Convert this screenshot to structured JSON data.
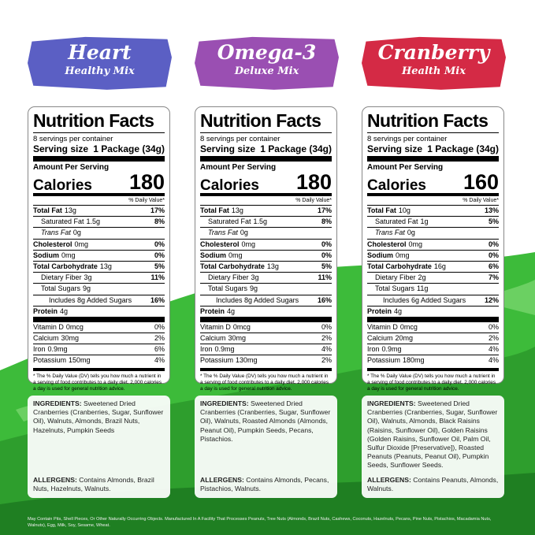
{
  "panels": [
    {
      "banner_title": "Heart",
      "banner_subtitle": "Healthy Mix",
      "banner_color": "#5b5fc4",
      "nutrition": {
        "heading": "Nutrition Facts",
        "servings": "8 servings per container",
        "serving_size_label": "Serving size",
        "serving_size": "1 Package (34g)",
        "amount_per_serving": "Amount Per Serving",
        "calories_label": "Calories",
        "calories": 180,
        "dv_header": "% Daily Value*",
        "rows": [
          {
            "label": "Total Fat",
            "amount": "13g",
            "dv": "17%"
          },
          {
            "label": "Saturated Fat",
            "amount": "1.5g",
            "dv": "8%"
          },
          {
            "label": "Trans Fat",
            "amount": "0g"
          },
          {
            "label": "Cholesterol",
            "amount": "0mg",
            "dv": "0%"
          },
          {
            "label": "Sodium",
            "amount": "0mg",
            "dv": "0%"
          },
          {
            "label": "Total Carbohydrate",
            "amount": "13g",
            "dv": "5%"
          },
          {
            "label": "Dietary Fiber",
            "amount": "3g",
            "dv": "11%"
          },
          {
            "label": "Total Sugars",
            "amount": "9g"
          },
          {
            "label": "Includes 8g Added Sugars",
            "dv": "16%"
          },
          {
            "label": "Protein",
            "amount": "4g"
          },
          {
            "label": "Vitamin D",
            "amount": "0mcg",
            "dv": "0%"
          },
          {
            "label": "Calcium",
            "amount": "30mg",
            "dv": "2%"
          },
          {
            "label": "Iron",
            "amount": "0.9mg",
            "dv": "6%"
          },
          {
            "label": "Potassium",
            "amount": "150mg",
            "dv": "4%"
          }
        ],
        "footnote": "* The % Daily Value (DV) tells you how much a nutrient in a serving of food contributes to a daily diet. 2,000 calories a day is used for general nutrition advice."
      },
      "ingredients_label": "INGREDIENTS:",
      "ingredients": "Sweetened Dried Cranberries (Cranberries, Sugar, Sunflower Oil), Walnuts, Almonds, Brazil Nuts, Hazelnuts, Pumpkin Seeds",
      "allergens_label": "ALLERGENS:",
      "allergens": "Contains Almonds, Brazil Nuts, Hazelnuts, Walnuts."
    },
    {
      "banner_title": "Omega-3",
      "banner_subtitle": "Deluxe Mix",
      "banner_color": "#9a4fb2",
      "nutrition": {
        "heading": "Nutrition Facts",
        "servings": "8 servings per container",
        "serving_size_label": "Serving size",
        "serving_size": "1 Package (34g)",
        "amount_per_serving": "Amount Per Serving",
        "calories_label": "Calories",
        "calories": 180,
        "dv_header": "% Daily Value*",
        "rows": [
          {
            "label": "Total Fat",
            "amount": "13g",
            "dv": "17%"
          },
          {
            "label": "Saturated Fat",
            "amount": "1.5g",
            "dv": "8%"
          },
          {
            "label": "Trans Fat",
            "amount": "0g"
          },
          {
            "label": "Cholesterol",
            "amount": "0mg",
            "dv": "0%"
          },
          {
            "label": "Sodium",
            "amount": "0mg",
            "dv": "0%"
          },
          {
            "label": "Total Carbohydrate",
            "amount": "13g",
            "dv": "5%"
          },
          {
            "label": "Dietary Fiber",
            "amount": "3g",
            "dv": "11%"
          },
          {
            "label": "Total Sugars",
            "amount": "9g"
          },
          {
            "label": "Includes 8g Added Sugars",
            "dv": "16%"
          },
          {
            "label": "Protein",
            "amount": "4g"
          },
          {
            "label": "Vitamin D",
            "amount": "0mcg",
            "dv": "0%"
          },
          {
            "label": "Calcium",
            "amount": "30mg",
            "dv": "2%"
          },
          {
            "label": "Iron",
            "amount": "0.9mg",
            "dv": "4%"
          },
          {
            "label": "Potassium",
            "amount": "130mg",
            "dv": "2%"
          }
        ],
        "footnote": "* The % Daily Value (DV) tells you how much a nutrient in a serving of food contributes to a daily diet. 2,000 calories a day is used for general nutrition advice."
      },
      "ingredients_label": "INGREDIENTS:",
      "ingredients": "Sweetened Dried Cranberries (Cranberries, Sugar, Sunflower Oil), Walnuts, Roasted Almonds (Almonds, Peanut Oil), Pumpkin Seeds, Pecans, Pistachios.",
      "allergens_label": "ALLERGENS:",
      "allergens": "Contains Almonds, Pecans, Pistachios, Walnuts."
    },
    {
      "banner_title": "Cranberry",
      "banner_subtitle": "Health Mix",
      "banner_color": "#d42a45",
      "nutrition": {
        "heading": "Nutrition Facts",
        "servings": "8 servings per container",
        "serving_size_label": "Serving size",
        "serving_size": "1 Package (34g)",
        "amount_per_serving": "Amount Per Serving",
        "calories_label": "Calories",
        "calories": 160,
        "dv_header": "% Daily Value*",
        "rows": [
          {
            "label": "Total Fat",
            "amount": "10g",
            "dv": "13%"
          },
          {
            "label": "Saturated Fat",
            "amount": "1g",
            "dv": "5%"
          },
          {
            "label": "Trans Fat",
            "amount": "0g"
          },
          {
            "label": "Cholesterol",
            "amount": "0mg",
            "dv": "0%"
          },
          {
            "label": "Sodium",
            "amount": "0mg",
            "dv": "0%"
          },
          {
            "label": "Total Carbohydrate",
            "amount": "16g",
            "dv": "6%"
          },
          {
            "label": "Dietary Fiber",
            "amount": "2g",
            "dv": "7%"
          },
          {
            "label": "Total Sugars",
            "amount": "11g"
          },
          {
            "label": "Includes 6g Added Sugars",
            "dv": "12%"
          },
          {
            "label": "Protein",
            "amount": "4g"
          },
          {
            "label": "Vitamin D",
            "amount": "0mcg",
            "dv": "0%"
          },
          {
            "label": "Calcium",
            "amount": "20mg",
            "dv": "2%"
          },
          {
            "label": "Iron",
            "amount": "0.9mg",
            "dv": "4%"
          },
          {
            "label": "Potassium",
            "amount": "180mg",
            "dv": "4%"
          }
        ],
        "footnote": "* The % Daily Value (DV) tells you how much a nutrient in a serving of food contributes to a daily diet. 2,000 calories a day is used for general nutrition advice."
      },
      "ingredients_label": "INGREDIENTS:",
      "ingredients": "Sweetened Dried Cranberries (Cranberries, Sugar, Sunflower Oil), Walnuts, Almonds, Black Raisins (Raisins, Sunflower Oil), Golden Raisins (Golden Raisins, Sunflower Oil, Palm Oil, Sulfur Dioxide [Preservative]), Roasted Peanuts (Peanuts, Peanut Oil), Pumpkin Seeds, Sunflower Seeds.",
      "allergens_label": "ALLERGENS:",
      "allergens": "Contains Peanuts, Almonds, Walnuts."
    }
  ],
  "footer": "May Contain Pits, Shell Pieces, Or Other Naturally Occurring Objects. Manufactured In A Facility That Processes Peanuts, Tree Nuts (Almonds, Brazil Nuts, Cashews, Coconuts, Hazelnuts, Pecans, Pine Nuts, Pistachios, Macadamia Nuts, Walnuts), Egg, Milk, Soy, Sesame, Wheat."
}
